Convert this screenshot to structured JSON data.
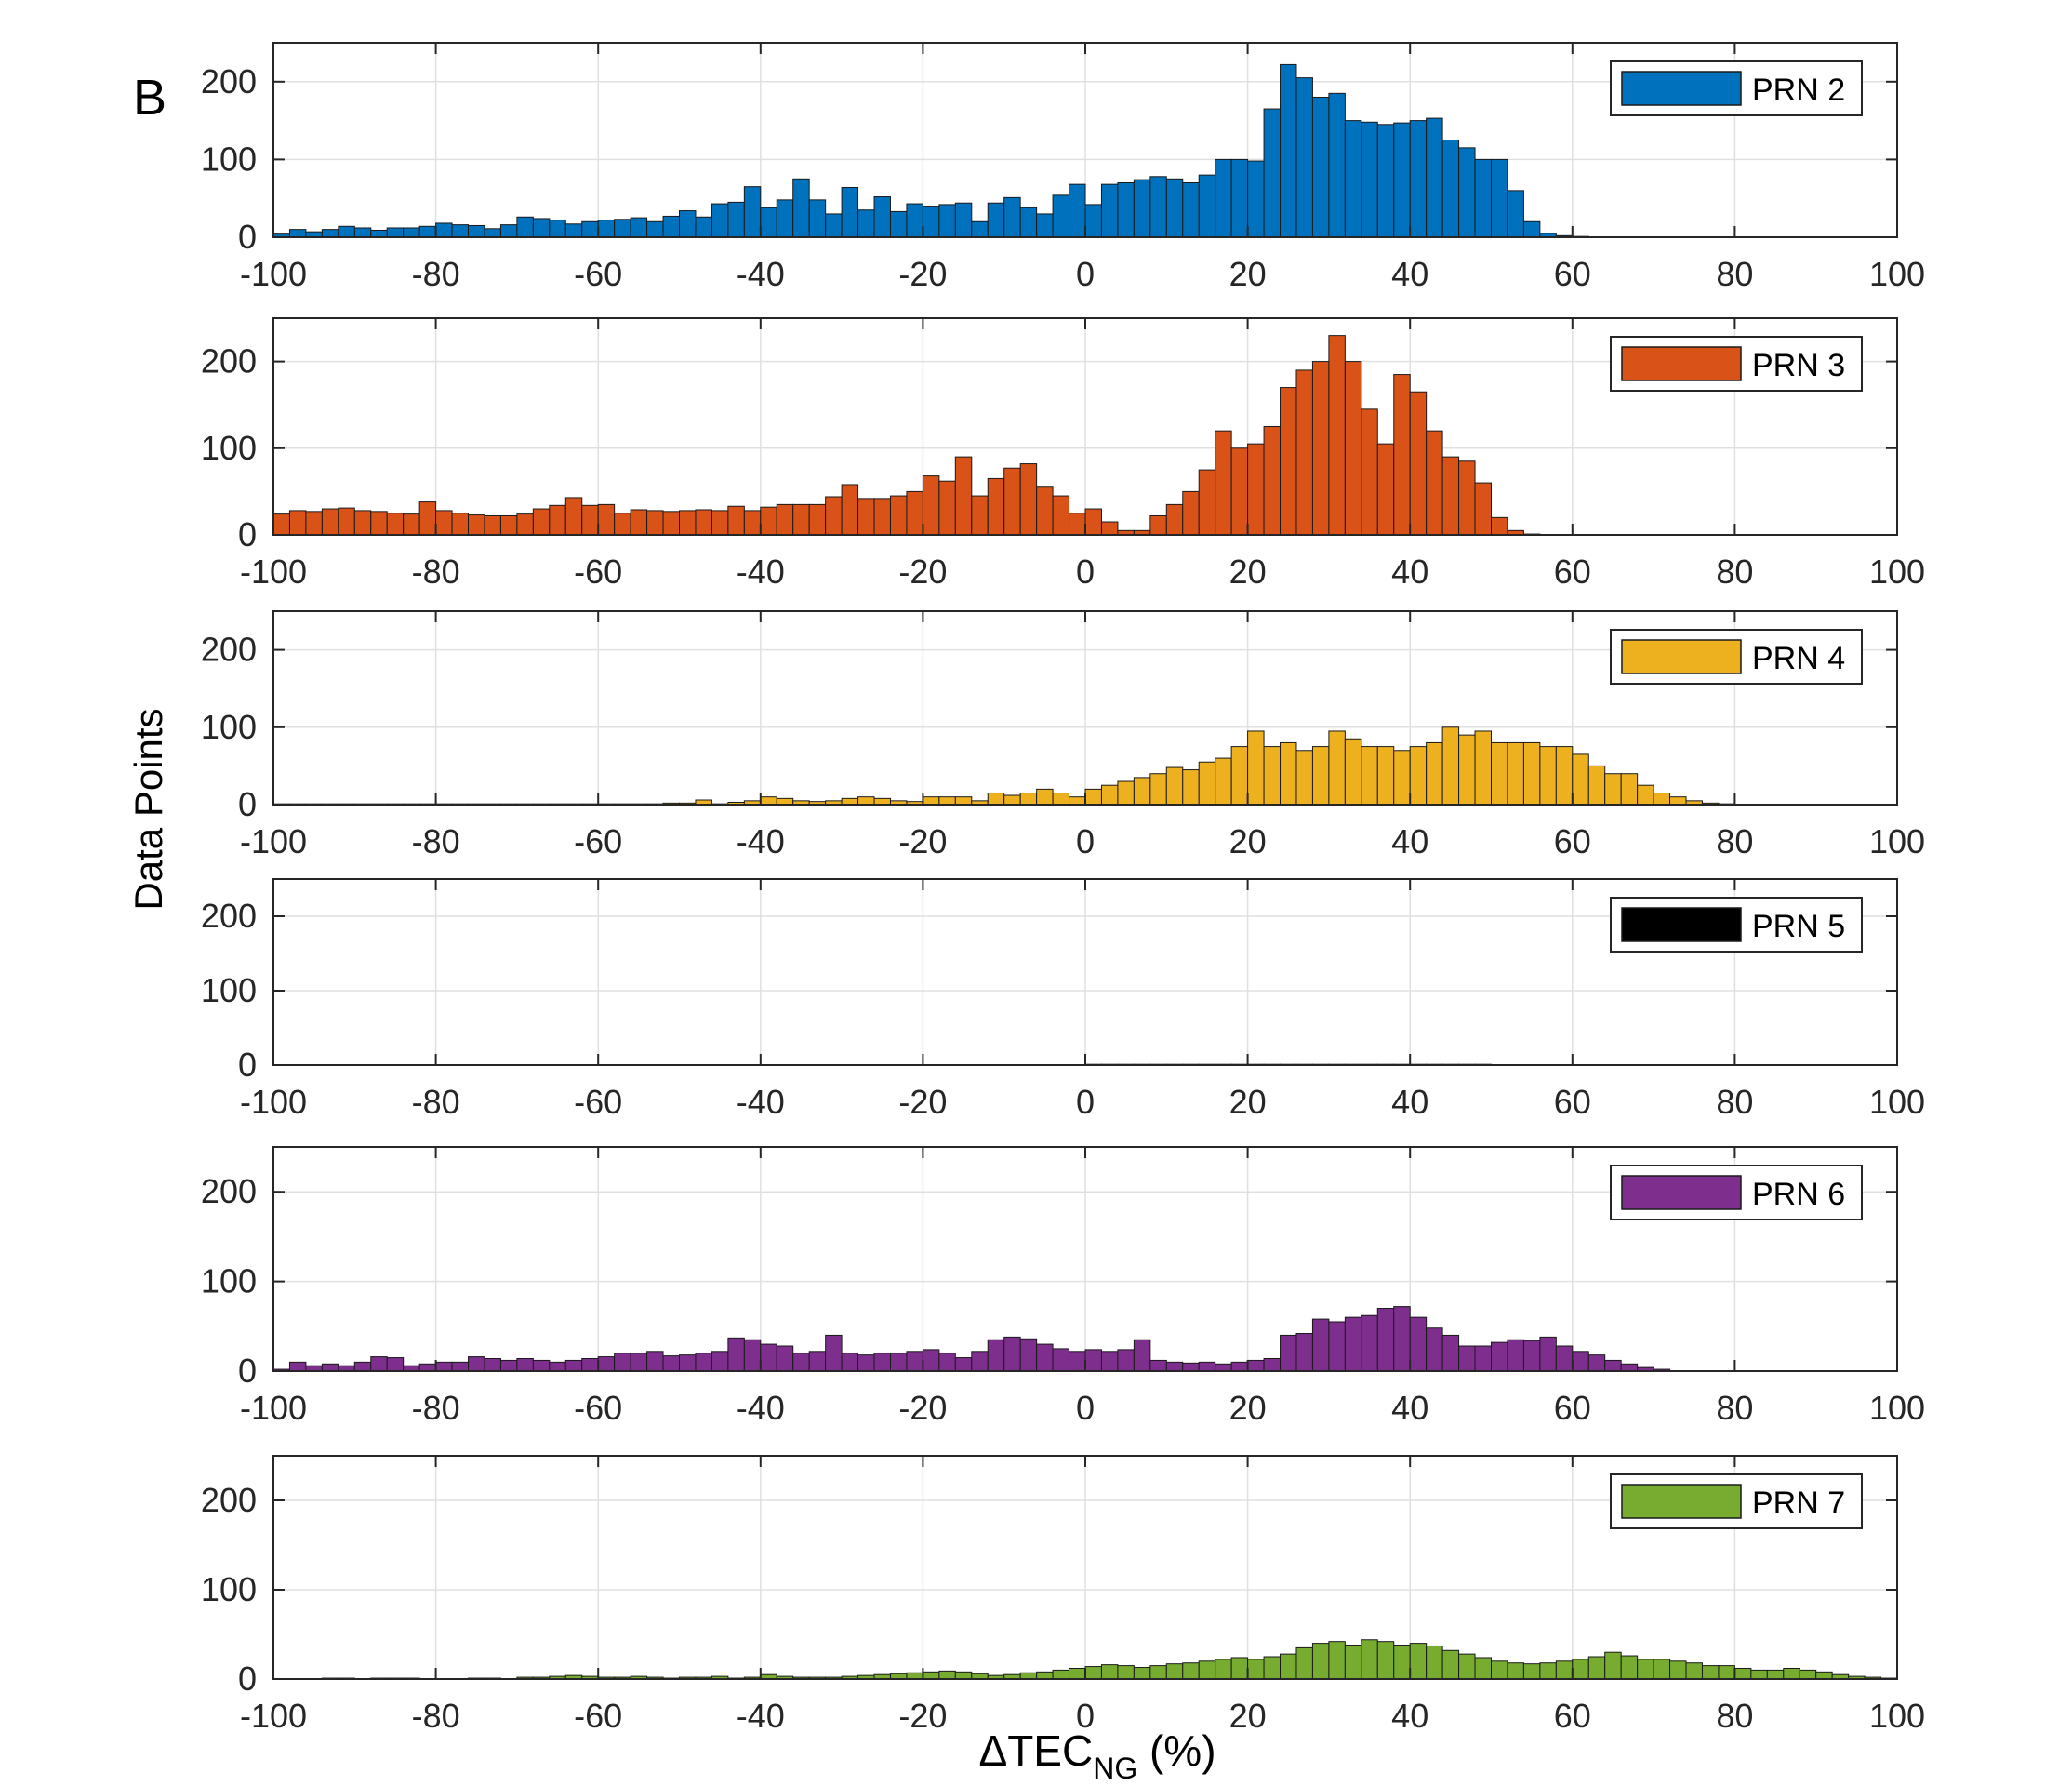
{
  "panel_label": "B",
  "ylabel": "Data Points",
  "xlabel": {
    "prefix": "ΔTEC",
    "subscript": "NG",
    "suffix": " (%)"
  },
  "chart_data": [
    {
      "type": "bar",
      "name": "PRN 2",
      "legend": "PRN 2",
      "color": "#0072bd",
      "xlim": [
        -100,
        100
      ],
      "ylim": [
        0,
        250
      ],
      "xticks": [
        -100,
        -80,
        -60,
        -40,
        -20,
        0,
        20,
        40,
        60,
        80,
        100
      ],
      "yticks": [
        0,
        100,
        200
      ],
      "grid": true,
      "legend_position": "top-right",
      "bin_start": -100,
      "bin_width": 2,
      "values": [
        4,
        10,
        7,
        10,
        14,
        12,
        9,
        12,
        12,
        14,
        18,
        16,
        15,
        11,
        16,
        26,
        24,
        22,
        17,
        20,
        22,
        23,
        25,
        20,
        27,
        34,
        26,
        43,
        45,
        65,
        38,
        48,
        75,
        48,
        30,
        64,
        35,
        52,
        33,
        43,
        40,
        42,
        44,
        20,
        44,
        51,
        38,
        30,
        54,
        68,
        42,
        68,
        70,
        74,
        78,
        75,
        70,
        80,
        100,
        100,
        98,
        165,
        222,
        205,
        180,
        185,
        150,
        148,
        145,
        147,
        150,
        153,
        125,
        115,
        100,
        100,
        60,
        20,
        5,
        2,
        1,
        0,
        0,
        0,
        0,
        0,
        0,
        0,
        0,
        0,
        0,
        0,
        0,
        0,
        0,
        0,
        0,
        0,
        0,
        0
      ]
    },
    {
      "type": "bar",
      "name": "PRN 3",
      "legend": "PRN 3",
      "color": "#d95319",
      "xlim": [
        -100,
        100
      ],
      "ylim": [
        0,
        250
      ],
      "xticks": [
        -100,
        -80,
        -60,
        -40,
        -20,
        0,
        20,
        40,
        60,
        80,
        100
      ],
      "yticks": [
        0,
        100,
        200
      ],
      "grid": true,
      "legend_position": "top-right",
      "bin_start": -100,
      "bin_width": 2,
      "values": [
        24,
        28,
        27,
        30,
        31,
        28,
        27,
        25,
        24,
        38,
        28,
        25,
        23,
        22,
        22,
        24,
        30,
        34,
        43,
        34,
        35,
        25,
        29,
        28,
        27,
        28,
        29,
        28,
        33,
        28,
        32,
        35,
        35,
        35,
        44,
        58,
        42,
        42,
        45,
        50,
        68,
        62,
        90,
        45,
        65,
        77,
        82,
        55,
        45,
        25,
        30,
        15,
        5,
        5,
        22,
        35,
        50,
        75,
        120,
        100,
        105,
        125,
        170,
        190,
        200,
        230,
        200,
        145,
        105,
        185,
        165,
        120,
        90,
        85,
        60,
        20,
        5,
        1,
        0,
        0,
        0,
        0,
        0,
        0,
        0,
        0,
        0,
        0,
        0,
        0,
        0,
        0,
        0,
        0,
        0,
        0,
        0,
        0,
        0,
        0
      ]
    },
    {
      "type": "bar",
      "name": "PRN 4",
      "legend": "PRN 4",
      "color": "#edb120",
      "xlim": [
        -100,
        100
      ],
      "ylim": [
        0,
        250
      ],
      "xticks": [
        -100,
        -80,
        -60,
        -40,
        -20,
        0,
        20,
        40,
        60,
        80,
        100
      ],
      "yticks": [
        0,
        100,
        200
      ],
      "grid": true,
      "legend_position": "top-right",
      "bin_start": -100,
      "bin_width": 2,
      "values": [
        1,
        1,
        1,
        1,
        1,
        1,
        1,
        1,
        1,
        1,
        1,
        1,
        1,
        1,
        1,
        1,
        1,
        1,
        1,
        1,
        1,
        1,
        1,
        1,
        2,
        2,
        6,
        1,
        3,
        5,
        10,
        8,
        5,
        4,
        5,
        8,
        10,
        8,
        5,
        4,
        10,
        10,
        10,
        5,
        15,
        12,
        15,
        20,
        15,
        10,
        20,
        25,
        30,
        35,
        40,
        48,
        45,
        55,
        60,
        75,
        95,
        75,
        80,
        70,
        75,
        95,
        85,
        75,
        75,
        70,
        75,
        80,
        100,
        90,
        95,
        80,
        80,
        80,
        75,
        75,
        65,
        50,
        40,
        40,
        25,
        15,
        10,
        5,
        2,
        1,
        0,
        0,
        0,
        0,
        0,
        0,
        0,
        0,
        0,
        0
      ]
    },
    {
      "type": "bar",
      "name": "PRN 5",
      "legend": "PRN 5",
      "color": "#000000",
      "xlim": [
        -100,
        100
      ],
      "ylim": [
        0,
        250
      ],
      "xticks": [
        -100,
        -80,
        -60,
        -40,
        -20,
        0,
        20,
        40,
        60,
        80,
        100
      ],
      "yticks": [
        0,
        100,
        200
      ],
      "grid": true,
      "legend_position": "top-right",
      "bin_start": -100,
      "bin_width": 2,
      "values": [
        0,
        0,
        0,
        0,
        0,
        0,
        0,
        0,
        0,
        0,
        0,
        0,
        0,
        0,
        0,
        0,
        0,
        0,
        0,
        0,
        0,
        0,
        0,
        0,
        0,
        0,
        0,
        0,
        0,
        0,
        0,
        0,
        0,
        0,
        0,
        0,
        0,
        0,
        0,
        0,
        0,
        0,
        0,
        0,
        0,
        0,
        0,
        0,
        0,
        0,
        1,
        1,
        1,
        1,
        1,
        1,
        1,
        1,
        1,
        1,
        1,
        1,
        1,
        1,
        1,
        1,
        1,
        1,
        1,
        1,
        1,
        1,
        1,
        1,
        1,
        0,
        0,
        0,
        0,
        0,
        0,
        0,
        0,
        0,
        0,
        0,
        0,
        0,
        0,
        0,
        0,
        0,
        0,
        0,
        0,
        0,
        0,
        0,
        0,
        0
      ]
    },
    {
      "type": "bar",
      "name": "PRN 6",
      "legend": "PRN 6",
      "color": "#7e2f8e",
      "xlim": [
        -100,
        100
      ],
      "ylim": [
        0,
        250
      ],
      "xticks": [
        -100,
        -80,
        -60,
        -40,
        -20,
        0,
        20,
        40,
        60,
        80,
        100
      ],
      "yticks": [
        0,
        100,
        200
      ],
      "grid": true,
      "legend_position": "top-right",
      "bin_start": -100,
      "bin_width": 2,
      "values": [
        2,
        10,
        6,
        8,
        6,
        10,
        16,
        15,
        6,
        8,
        10,
        10,
        16,
        14,
        12,
        14,
        12,
        10,
        12,
        14,
        16,
        20,
        20,
        22,
        17,
        18,
        20,
        22,
        37,
        35,
        30,
        28,
        20,
        22,
        40,
        20,
        18,
        20,
        20,
        22,
        24,
        20,
        15,
        22,
        35,
        38,
        36,
        30,
        25,
        22,
        24,
        22,
        24,
        35,
        12,
        10,
        9,
        10,
        8,
        10,
        12,
        14,
        40,
        42,
        58,
        55,
        60,
        62,
        70,
        72,
        60,
        48,
        40,
        28,
        28,
        32,
        35,
        34,
        38,
        28,
        22,
        18,
        12,
        8,
        4,
        2,
        0,
        0,
        0,
        0,
        0,
        0,
        0,
        0,
        0,
        0,
        0,
        0,
        0,
        0
      ]
    },
    {
      "type": "bar",
      "name": "PRN 7",
      "legend": "PRN 7",
      "color": "#77ac30",
      "xlim": [
        -100,
        100
      ],
      "ylim": [
        0,
        250
      ],
      "xticks": [
        -100,
        -80,
        -60,
        -40,
        -20,
        0,
        20,
        40,
        60,
        80,
        100
      ],
      "yticks": [
        0,
        100,
        200
      ],
      "grid": true,
      "legend_position": "top-right",
      "bin_start": -100,
      "bin_width": 2,
      "values": [
        0,
        0,
        0,
        1,
        1,
        0,
        1,
        1,
        1,
        0,
        0,
        0,
        1,
        1,
        0,
        2,
        2,
        3,
        4,
        3,
        2,
        2,
        3,
        2,
        1,
        2,
        2,
        3,
        1,
        2,
        5,
        3,
        2,
        2,
        2,
        3,
        4,
        5,
        6,
        7,
        8,
        9,
        8,
        6,
        4,
        5,
        7,
        8,
        10,
        12,
        14,
        16,
        15,
        13,
        15,
        17,
        18,
        20,
        22,
        24,
        22,
        25,
        28,
        35,
        40,
        42,
        38,
        44,
        42,
        38,
        40,
        37,
        32,
        28,
        24,
        20,
        18,
        17,
        18,
        20,
        22,
        25,
        30,
        26,
        22,
        22,
        20,
        18,
        15,
        15,
        12,
        10,
        10,
        12,
        10,
        8,
        5,
        3,
        2,
        1
      ]
    }
  ]
}
